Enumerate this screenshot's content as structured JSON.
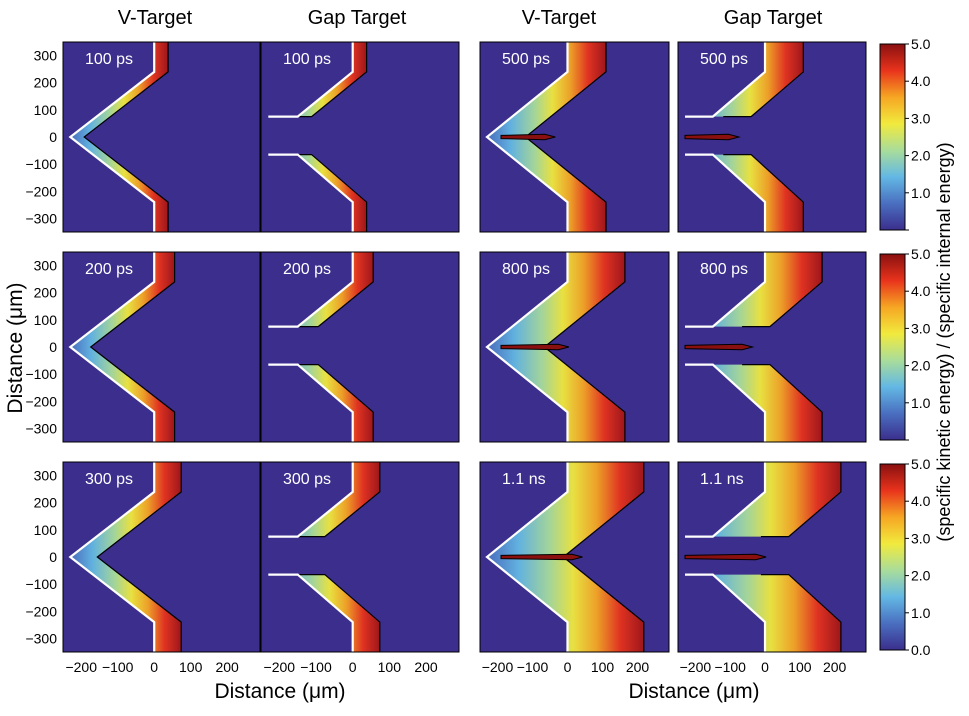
{
  "chart_data": {
    "type": "heatmap",
    "column_titles": [
      "V-Target",
      "Gap Target",
      "V-Target",
      "Gap Target"
    ],
    "target_types": [
      "V-Target",
      "Gap Target"
    ],
    "time_labels": [
      [
        "100 ps",
        "100 ps",
        "500 ps",
        "500 ps"
      ],
      [
        "200 ps",
        "200 ps",
        "800 ps",
        "800 ps"
      ],
      [
        "300 ps",
        "300 ps",
        "1.1 ns",
        "1.1 ns"
      ]
    ],
    "times_ps": [
      [
        100,
        100,
        500,
        500
      ],
      [
        200,
        200,
        800,
        800
      ],
      [
        300,
        300,
        1100,
        1100
      ]
    ],
    "xlabel": "Distance (μm)",
    "ylabel": "Distance (μm)",
    "xlim": [
      -250,
      290
    ],
    "ylim": [
      -350,
      350
    ],
    "xticks": [
      -200,
      -100,
      0,
      100,
      200
    ],
    "xtick_labels": [
      "−200",
      "−100",
      "0",
      "100",
      "200"
    ],
    "yticks": [
      300,
      200,
      100,
      0,
      -100,
      -200,
      -300
    ],
    "ytick_labels": [
      "300",
      "200",
      "100",
      "0",
      "−100",
      "−200",
      "−300"
    ],
    "colorbar_label": "(specific kinetic energy) / (specific internal energy)",
    "colorbar_range": [
      0,
      5
    ],
    "colorbar_ticks": [
      5.0,
      4.0,
      3.0,
      2.0,
      1.0,
      0.0
    ],
    "colorbar_tick_labels": [
      [
        "5.0",
        "4.0",
        "3.0",
        "2.0",
        "1.0",
        ""
      ],
      [
        "5.0",
        "4.0",
        "3.0",
        "2.0",
        "1.0",
        ""
      ],
      [
        "5.0",
        "4.0",
        "3.0",
        "2.0",
        "1.0",
        "0.0"
      ]
    ],
    "colormap": [
      "#3b2e8c",
      "#4a6fc0",
      "#63b8e4",
      "#a9dd9a",
      "#f1ea3d",
      "#f6a623",
      "#e8331c",
      "#8a1010"
    ],
    "background_color": "#3b2e8c",
    "spike_rows": [
      2,
      2,
      2
    ],
    "spike_cols": [
      2,
      3
    ],
    "spike_present": [
      [
        false,
        false,
        true,
        true
      ],
      [
        false,
        false,
        true,
        true
      ],
      [
        false,
        false,
        true,
        true
      ]
    ]
  }
}
